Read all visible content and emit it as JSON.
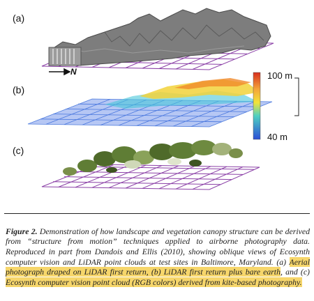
{
  "figure": {
    "panel_a_label": "(a)",
    "panel_b_label": "(b)",
    "panel_c_label": "(c)",
    "north_label": "N",
    "scale_top": "100 m",
    "scale_bottom": "40 m",
    "colors": {
      "grid": "#8a3fa6",
      "scale_high": "#d7301f",
      "scale_low": "#2b4fd6"
    }
  },
  "caption": {
    "lead": "Figure 2.",
    "part1": " Demonstration of how landscape and vegetation canopy structure can be derived from “structure from motion” techniques applied to airborne photography data. Reproduced in part from Dandois and Ellis (2010), showing oblique views of Ecosynth computer vision and LiDAR point clouds at test sites in Baltimore, Maryland. (a) ",
    "hl1": "Aerial photograph draped on LiDAR first return, (b) LiDAR first return plus bare earth",
    "part2": ", and (c) ",
    "hl2": "Ecosynth computer vision point cloud (RGB colors) derived from kite-based photography."
  }
}
